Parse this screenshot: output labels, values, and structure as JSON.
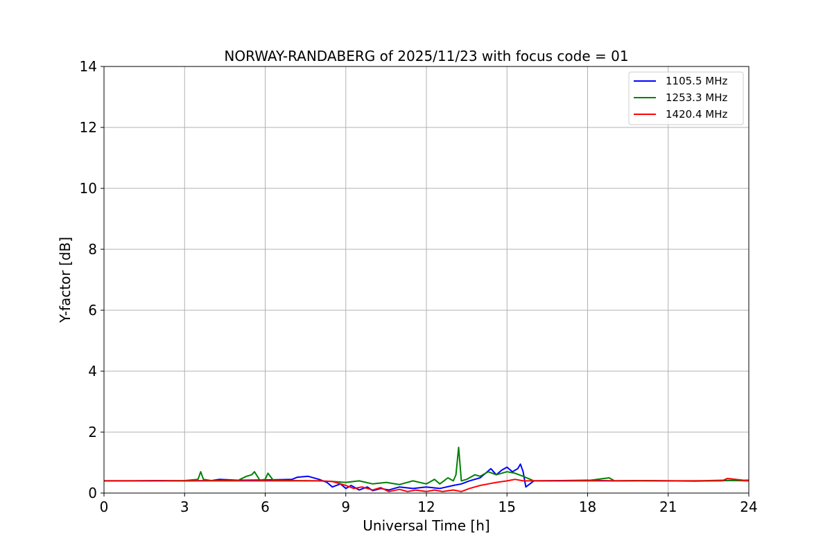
{
  "chart_data": {
    "type": "line",
    "title": "NORWAY-RANDABERG of 2025/11/23 with focus code = 01",
    "xlabel": "Universal Time [h]",
    "ylabel": "Y-factor [dB]",
    "xlim": [
      0,
      24
    ],
    "ylim": [
      0,
      14
    ],
    "xticks": [
      0,
      3,
      6,
      9,
      12,
      15,
      18,
      21,
      24
    ],
    "yticks": [
      0,
      2,
      4,
      6,
      8,
      10,
      12,
      14
    ],
    "grid": true,
    "legend_position": "top-right",
    "series": [
      {
        "name": "1105.5 MHz",
        "color": "#0000ff",
        "x": [
          0,
          1,
          2,
          3,
          4,
          4.3,
          5,
          6,
          7,
          7.2,
          7.6,
          8,
          8.3,
          8.5,
          8.8,
          9.0,
          9.2,
          9.5,
          9.8,
          10.0,
          10.3,
          10.6,
          11.0,
          11.5,
          12.0,
          12.5,
          13.0,
          13.3,
          13.6,
          14.0,
          14.2,
          14.4,
          14.6,
          14.8,
          15.0,
          15.2,
          15.4,
          15.5,
          15.6,
          15.7,
          16,
          17,
          18,
          19,
          20,
          21,
          22,
          23,
          24
        ],
        "y": [
          0.4,
          0.4,
          0.41,
          0.4,
          0.41,
          0.45,
          0.42,
          0.43,
          0.45,
          0.52,
          0.55,
          0.45,
          0.35,
          0.2,
          0.3,
          0.15,
          0.25,
          0.1,
          0.2,
          0.08,
          0.15,
          0.1,
          0.2,
          0.15,
          0.2,
          0.15,
          0.25,
          0.3,
          0.4,
          0.5,
          0.65,
          0.8,
          0.6,
          0.75,
          0.85,
          0.7,
          0.8,
          0.95,
          0.7,
          0.2,
          0.4,
          0.41,
          0.42,
          0.4,
          0.41,
          0.4,
          0.39,
          0.41,
          0.42
        ]
      },
      {
        "name": "1253.3 MHz",
        "color": "#008000",
        "x": [
          0,
          1,
          2,
          3,
          3.5,
          3.6,
          3.7,
          4,
          5,
          5.3,
          5.5,
          5.6,
          5.8,
          6.0,
          6.1,
          6.3,
          7,
          8,
          8.5,
          9,
          9.5,
          10,
          10.5,
          11,
          11.5,
          12,
          12.3,
          12.5,
          12.8,
          13.0,
          13.1,
          13.2,
          13.3,
          13.5,
          13.8,
          14.0,
          14.3,
          14.6,
          15.0,
          15.3,
          15.6,
          16,
          17,
          18,
          18.8,
          19,
          20,
          21,
          22,
          23,
          24
        ],
        "y": [
          0.4,
          0.4,
          0.4,
          0.41,
          0.45,
          0.7,
          0.45,
          0.41,
          0.42,
          0.55,
          0.6,
          0.7,
          0.42,
          0.45,
          0.65,
          0.42,
          0.41,
          0.4,
          0.38,
          0.35,
          0.4,
          0.3,
          0.35,
          0.28,
          0.4,
          0.3,
          0.45,
          0.3,
          0.5,
          0.4,
          0.6,
          1.5,
          0.4,
          0.45,
          0.6,
          0.55,
          0.7,
          0.6,
          0.7,
          0.65,
          0.55,
          0.4,
          0.4,
          0.41,
          0.5,
          0.4,
          0.41,
          0.4,
          0.4,
          0.42,
          0.4
        ]
      },
      {
        "name": "1420.4 MHz",
        "color": "#ff0000",
        "x": [
          0,
          1,
          2,
          3,
          4,
          5,
          6,
          7,
          8,
          8.5,
          9.0,
          9.3,
          9.6,
          10.0,
          10.3,
          10.6,
          11.0,
          11.3,
          11.6,
          12.0,
          12.3,
          12.6,
          13.0,
          13.3,
          13.6,
          14.0,
          14.3,
          14.6,
          15.0,
          15.3,
          15.6,
          16,
          17,
          18,
          19,
          20,
          21,
          22,
          23,
          23.2,
          24
        ],
        "y": [
          0.4,
          0.4,
          0.4,
          0.4,
          0.4,
          0.4,
          0.4,
          0.4,
          0.4,
          0.38,
          0.25,
          0.15,
          0.2,
          0.1,
          0.18,
          0.05,
          0.12,
          0.05,
          0.1,
          0.05,
          0.1,
          0.05,
          0.1,
          0.05,
          0.15,
          0.25,
          0.3,
          0.35,
          0.4,
          0.45,
          0.4,
          0.4,
          0.4,
          0.4,
          0.4,
          0.4,
          0.4,
          0.4,
          0.4,
          0.48,
          0.4
        ]
      }
    ]
  }
}
